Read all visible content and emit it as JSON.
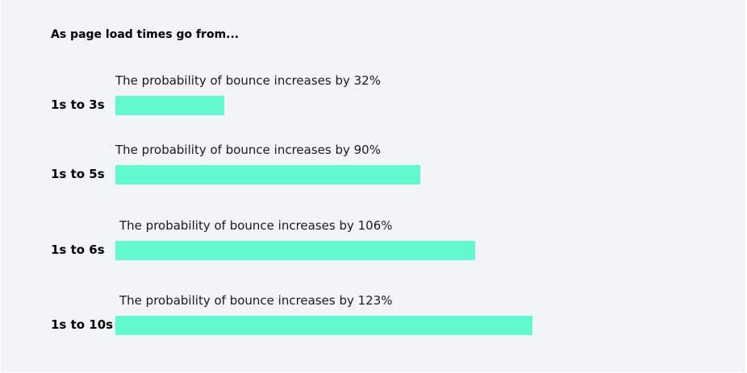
{
  "colors": {
    "background": "#f2f5f6",
    "bar": "#62f8d0",
    "text": "#000000"
  },
  "chart_data": {
    "type": "bar",
    "orientation": "horizontal",
    "title": "As page load times go from...",
    "xlabel": "",
    "ylabel": "",
    "xlim": [
      0,
      123
    ],
    "grid": false,
    "categories": [
      "1s to 3s",
      "1s to 5s",
      "1s to 6s",
      "1s to 10s"
    ],
    "values": [
      32,
      90,
      106,
      123
    ],
    "unit": "%",
    "annotations": [
      "The probability of bounce increases by 32%",
      "The probability of bounce increases by 90%",
      "The probability of bounce increases by 106%",
      "The probability of bounce increases by 123%"
    ]
  }
}
